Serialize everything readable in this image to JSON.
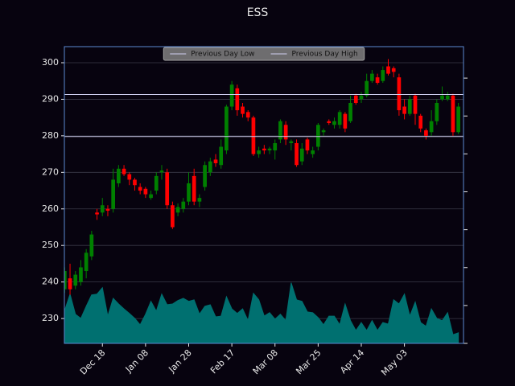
{
  "chart_data": {
    "type": "candlestick",
    "title": "ESS",
    "categories": [
      null,
      null,
      null,
      null,
      null,
      null,
      null,
      "Dec 18",
      null,
      null,
      null,
      null,
      null,
      null,
      null,
      "Jan 08",
      null,
      null,
      null,
      null,
      null,
      null,
      null,
      "Jan 28",
      null,
      null,
      null,
      null,
      null,
      null,
      null,
      "Feb 17",
      null,
      null,
      null,
      null,
      null,
      null,
      null,
      "Mar 08",
      null,
      null,
      null,
      null,
      null,
      null,
      null,
      "Mar 25",
      null,
      null,
      null,
      null,
      null,
      null,
      null,
      "Apr 14",
      null,
      null,
      null,
      null,
      null,
      null,
      null,
      "May 03",
      null,
      null,
      null,
      null,
      null,
      null,
      null,
      null,
      null,
      null
    ],
    "open": [
      238,
      241,
      239,
      240,
      243,
      247,
      259,
      259,
      260,
      260,
      267,
      271,
      269.5,
      268,
      266,
      265.5,
      263,
      265,
      270,
      270,
      261,
      259,
      260,
      262,
      269,
      262,
      266,
      270,
      273.5,
      272,
      276,
      288,
      293,
      288,
      286.5,
      285,
      275,
      276.5,
      276,
      276,
      279,
      283,
      278,
      278,
      273,
      279,
      275,
      277,
      281,
      284,
      283,
      283,
      286,
      284,
      291,
      290,
      291,
      295,
      296,
      295,
      299,
      298.5,
      296,
      288,
      286,
      291,
      285.5,
      281.5,
      281,
      284,
      290,
      290,
      291,
      281
    ],
    "high": [
      244,
      245,
      243,
      246,
      249,
      254,
      260,
      263,
      261,
      271,
      272,
      272,
      270,
      268.5,
      267,
      266,
      265,
      270,
      272,
      271,
      262,
      261.5,
      263,
      270,
      271,
      264,
      273,
      274,
      275,
      279,
      288.5,
      295,
      294,
      289,
      287,
      285.5,
      277,
      277.5,
      277,
      279,
      284.5,
      284,
      279,
      279,
      278,
      279.5,
      277,
      283.5,
      282,
      284.5,
      285,
      287,
      286.5,
      291,
      291.5,
      292,
      297,
      298,
      297,
      299,
      301,
      299,
      297,
      290,
      291,
      291.5,
      286,
      282,
      287,
      290,
      293.5,
      292,
      291.5,
      289
    ],
    "low": [
      237,
      236.5,
      238,
      239,
      241,
      246,
      257,
      258,
      258,
      259,
      266,
      269,
      266.5,
      265,
      264,
      263,
      262.5,
      264,
      268,
      260,
      254.5,
      258,
      259,
      261,
      261,
      260.5,
      265,
      269,
      271.5,
      271,
      275,
      287,
      285.5,
      285,
      284,
      274.5,
      274,
      275,
      275,
      273.5,
      278,
      277.5,
      276,
      271.5,
      272,
      275,
      274,
      276,
      280,
      283,
      282,
      282,
      281,
      283.5,
      288.5,
      289,
      290.5,
      294.5,
      294,
      294.5,
      296.5,
      296,
      285.5,
      284.5,
      285.5,
      283,
      281,
      279,
      280,
      283,
      289.5,
      289.5,
      280,
      280.5
    ],
    "close": [
      243,
      238,
      242,
      244,
      248,
      253,
      258.5,
      261,
      259.5,
      268,
      271,
      269.5,
      268,
      266.5,
      265,
      264,
      264,
      269,
      270.5,
      261,
      255,
      260.5,
      262,
      267,
      262,
      263,
      272,
      273,
      272.5,
      277,
      288,
      294,
      287,
      286,
      285,
      275,
      276,
      276,
      276.5,
      278,
      284,
      279,
      278.5,
      272,
      276.5,
      276,
      276,
      283,
      281.5,
      283.5,
      284,
      286.5,
      282,
      289,
      289,
      291,
      295,
      297,
      294.5,
      298,
      297,
      297.5,
      287,
      286,
      290,
      286,
      282,
      280,
      284,
      289,
      291,
      291,
      281,
      288
    ],
    "up_color": "#008000",
    "down_color": "#ff0000",
    "volume": {
      "color": "#007070",
      "axis": "y2",
      "values": [
        0.87,
        1.3,
        0.77,
        0.66,
        0.98,
        1.28,
        1.3,
        1.47,
        0.72,
        1.19,
        1.04,
        0.91,
        0.79,
        0.66,
        0.49,
        0.77,
        1.11,
        0.85,
        1.3,
        1.02,
        1.04,
        1.13,
        1.19,
        1.11,
        1.15,
        0.77,
        0.98,
        1.02,
        0.7,
        0.72,
        1.23,
        0.91,
        0.79,
        0.91,
        0.6,
        1.32,
        1.15,
        0.72,
        0.81,
        0.64,
        0.77,
        0.6,
        1.6,
        1.15,
        1.11,
        0.83,
        0.81,
        0.68,
        0.49,
        0.72,
        0.72,
        0.49,
        1.04,
        0.6,
        0.34,
        0.55,
        0.34,
        0.6,
        0.34,
        0.55,
        0.51,
        1.15,
        1.04,
        1.3,
        0.72,
        1.09,
        0.55,
        0.45,
        0.91,
        0.66,
        0.6,
        0.81,
        0.23,
        0.28
      ]
    },
    "ylim": [
      223.2,
      304.4
    ],
    "yticks": [
      230,
      240,
      250,
      260,
      270,
      280,
      290,
      300
    ],
    "y2lim": [
      0,
      7.83
    ],
    "y2ticks": [
      0,
      1,
      2,
      3,
      4,
      5,
      6,
      7
    ],
    "grid": true,
    "hlines": [
      {
        "name": "Previous Day Low",
        "value": 279.8,
        "color": "#d0d0f0"
      },
      {
        "name": "Previous Day High",
        "value": 291.3,
        "color": "#d0d0f0"
      }
    ],
    "legend": "upper center"
  }
}
